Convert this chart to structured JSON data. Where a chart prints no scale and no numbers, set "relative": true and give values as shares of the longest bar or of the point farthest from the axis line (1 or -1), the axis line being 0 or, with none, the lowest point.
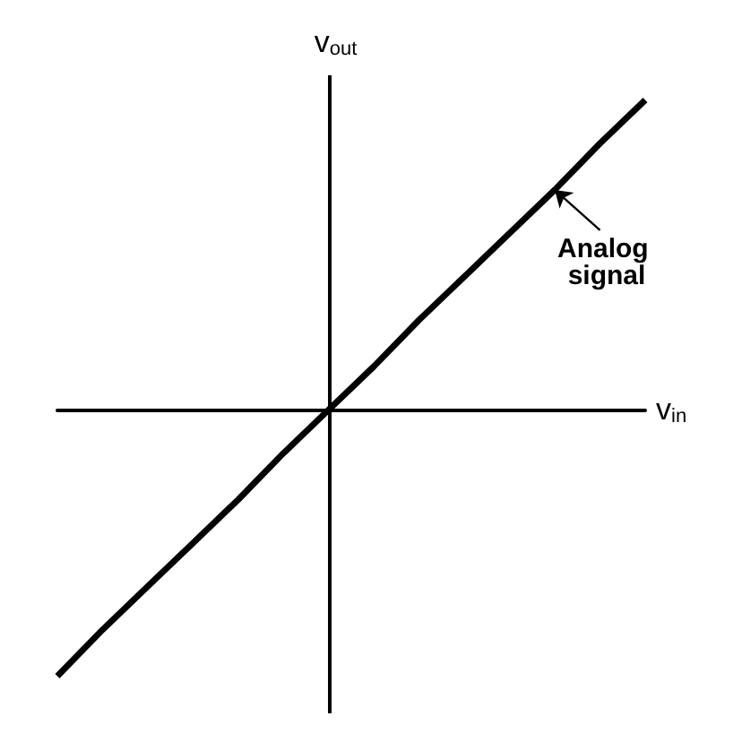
{
  "chart_data": {
    "type": "line",
    "relative": true,
    "xlabel": "v$_{in}$",
    "ylabel": "v$_{out}$",
    "categories": [
      null,
      null,
      null,
      null,
      null,
      null,
      null,
      null,
      null,
      null,
      null,
      null,
      null,
      null
    ],
    "series": [
      {
        "color": "#000000",
        "values": [
          -0.86,
          -0.71,
          -0.57,
          -0.43,
          -0.29,
          -0.14,
          0,
          0.14,
          0.29,
          0.43,
          0.57,
          0.71,
          0.86,
          1
        ]
      }
    ],
    "annotations": [
      "Analog signal"
    ],
    "grid": false,
    "marker": "none",
    "line_style": "solid"
  }
}
